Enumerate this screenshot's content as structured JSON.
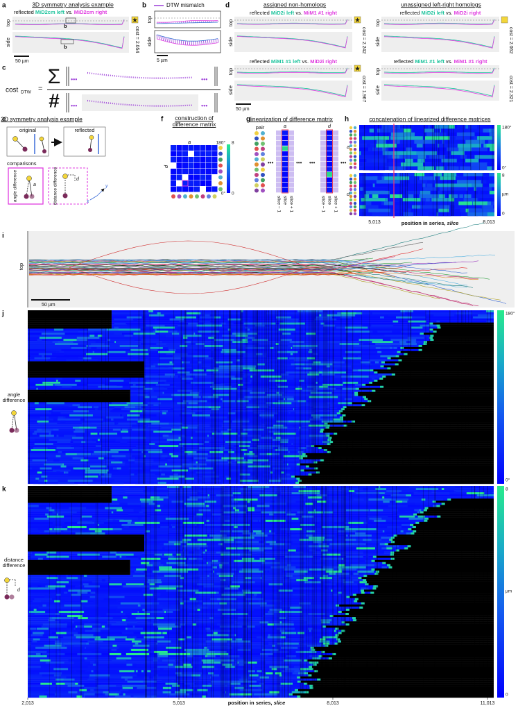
{
  "a": {
    "letter": "a",
    "title": "3D symmetry analysis example",
    "reflected": "reflected",
    "left": "MiD2cm  left",
    "vs": "vs.",
    "right": "MiD2cm right",
    "top": "top",
    "side": "side",
    "inset_top": "b",
    "inset_side": "b",
    "scale": "50 µm",
    "cost": "cost = 2.054"
  },
  "b": {
    "letter": "b",
    "legend": "DTW mismatch",
    "top": "top",
    "side": "side",
    "scale": "5 µm"
  },
  "c": {
    "letter": "c",
    "cost": "cost",
    "sub": "DTW",
    "equals": "=",
    "sum": "Σ",
    "count": "#",
    "dots": [
      "•••",
      "•••",
      "•••",
      "•••"
    ]
  },
  "d": {
    "letter": "d",
    "left_title": "assigned non-homologs",
    "right_title": "unassigned left-right homologs",
    "comparisons": [
      {
        "reflected": "reflected",
        "left": "MiD2i left",
        "vs": "vs.",
        "right": "MiM1 #1 right",
        "top": "top",
        "side": "side",
        "cost": "cost = 2.242"
      },
      {
        "reflected": "reflected",
        "left": "MiD2i left",
        "vs": "vs.",
        "right": "MiD2i right",
        "top": "top",
        "side": "side",
        "cost": "cost = 2.062"
      },
      {
        "reflected": "reflected",
        "left": "MiM1 #1 left",
        "vs": "vs.",
        "right": "MiD2i right",
        "top": "top",
        "side": "side",
        "cost": "cost = 1.967"
      },
      {
        "reflected": "reflected",
        "left": "MiM1 #1 left",
        "vs": "vs.",
        "right": "MiM1 #1 right",
        "top": "top",
        "side": "side",
        "cost": "cost = 2.321"
      }
    ],
    "scale": "50 µm"
  },
  "e": {
    "letter": "e",
    "title": "2D symmetry analysis example",
    "original": "original",
    "reflected": "reflected",
    "comparisons": "comparisons",
    "angle": "angle difference",
    "distance": "distance difference",
    "a": "a",
    "d": "d",
    "x": "x",
    "y": "y"
  },
  "f": {
    "letter": "f",
    "title": "construction of difference matrix",
    "a": "a",
    "d": "d",
    "top_labels": [
      "180°",
      "8"
    ],
    "bottom_labels": [
      "0°",
      "0"
    ]
  },
  "g": {
    "letter": "g",
    "title": "linearization of difference matrix",
    "pair": "pair",
    "a": "a",
    "d": "d",
    "dots": [
      "•••",
      "•••",
      "•••",
      "•••"
    ],
    "slices": [
      [
        "slice − 1",
        "slice",
        "slice + 1"
      ],
      [
        "slice − 1",
        "slice",
        "slice + 1"
      ]
    ]
  },
  "h": {
    "letter": "h",
    "title": "concatenation of linearized difference matrices",
    "a": "a",
    "d": "d",
    "angle_max": "180°",
    "angle_min": "0°",
    "dist_max": "8",
    "dist_unit": "µm",
    "dist_min": "0",
    "ticks": [
      "5,013",
      "8,013"
    ],
    "xlabel": "position in series, ",
    "xlabel_var": "slice"
  },
  "i": {
    "letter": "i",
    "top": "top",
    "scale": "50 µm"
  },
  "j": {
    "letter": "j",
    "label": "angle difference",
    "max": "180°",
    "min": "0°"
  },
  "k": {
    "letter": "k",
    "label": "distance difference",
    "d": "d",
    "max": "8",
    "unit": "µm",
    "min": "0",
    "ticks": [
      "2,013",
      "5,013",
      "8,013",
      "11,013"
    ],
    "xlabel": "position in series, ",
    "xlabel_var": "slice"
  }
}
